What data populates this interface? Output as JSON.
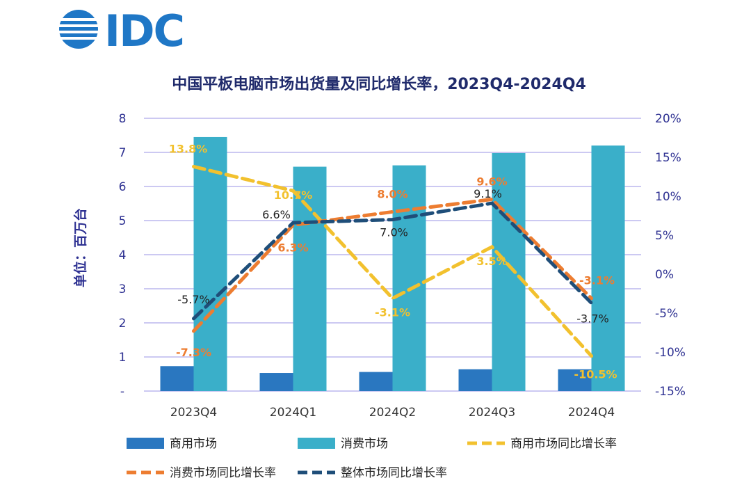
{
  "brand": {
    "logo_text": "IDC"
  },
  "chart_data": {
    "type": "bar",
    "title": "中国平板电脑市场出货量及同比增长率，2023Q4-2024Q4",
    "ylabel": "单位：百万台",
    "categories": [
      "2023Q4",
      "2024Q1",
      "2024Q2",
      "2024Q3",
      "2024Q4"
    ],
    "y_left": {
      "min": 0,
      "max": 8,
      "ticks": [
        "-",
        "1",
        "2",
        "3",
        "4",
        "5",
        "6",
        "7",
        "8"
      ]
    },
    "y_right": {
      "min": -15,
      "max": 20,
      "ticks": [
        "-15%",
        "-10%",
        "-5%",
        "0%",
        "5%",
        "10%",
        "15%",
        "20%"
      ]
    },
    "grid": true,
    "legend_position": "bottom",
    "series": [
      {
        "name": "商用市场",
        "kind": "bar",
        "axis": "left",
        "color": "#2a77c0",
        "values": [
          0.73,
          0.53,
          0.56,
          0.64,
          0.64
        ]
      },
      {
        "name": "消费市场",
        "kind": "bar",
        "axis": "left",
        "color": "#3aafc9",
        "values": [
          7.45,
          6.58,
          6.62,
          6.98,
          7.2
        ]
      },
      {
        "name": "商用市场同比增长率",
        "kind": "line",
        "axis": "right",
        "color": "#f2c12e",
        "values": [
          13.8,
          10.7,
          -3.1,
          3.5,
          -10.5
        ],
        "labels": [
          "13.8%",
          "10.7%",
          "-3.1%",
          "3.5%",
          "-10.5%"
        ]
      },
      {
        "name": "消费市场同比增长率",
        "kind": "line",
        "axis": "right",
        "color": "#ed7d31",
        "values": [
          -7.3,
          6.3,
          8.0,
          9.6,
          -3.1
        ],
        "labels": [
          "-7.3%",
          "6.3%",
          "8.0%",
          "9.6%",
          "-3.1%"
        ]
      },
      {
        "name": "整体市场同比增长率",
        "kind": "line",
        "axis": "right",
        "color": "#1f4e79",
        "values": [
          -5.7,
          6.6,
          7.0,
          9.1,
          -3.7
        ],
        "labels": [
          "-5.7%",
          "6.6%",
          "7.0%",
          "9.1%",
          "-3.7%"
        ]
      }
    ],
    "colors": {
      "axis_text": "#2e3192",
      "grid": "#bcb7ee",
      "title": "#1f2a6b",
      "logo": "#1f77c6"
    }
  }
}
